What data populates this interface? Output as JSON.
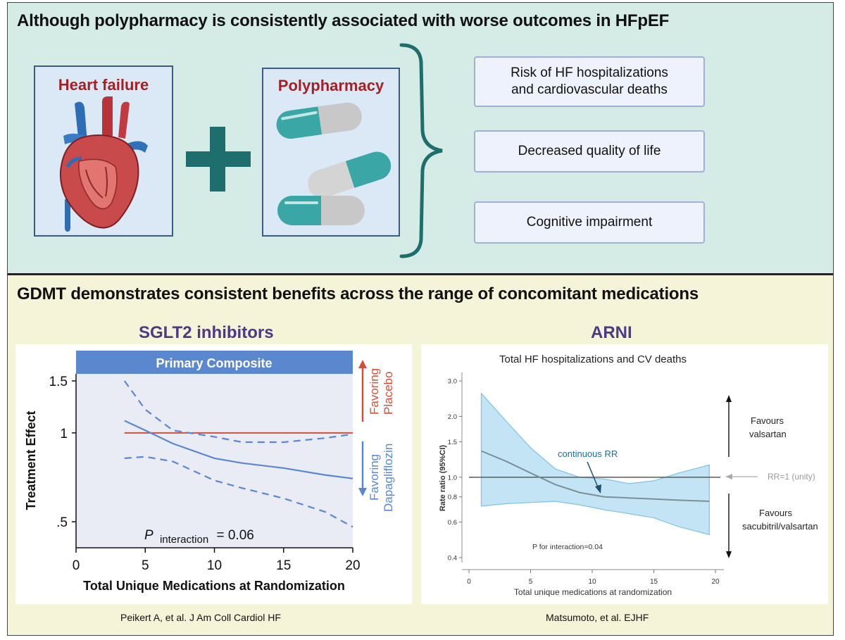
{
  "top_section": {
    "title": "Although polypharmacy is consistently associated with worse outcomes in HFpEF",
    "heart_card_title": "Heart failure",
    "pills_card_title": "Polypharmacy",
    "outcomes": [
      "Risk of HF hospitalizations\nand cardiovascular deaths",
      "Decreased quality of life",
      "Cognitive impairment"
    ],
    "colors": {
      "background": "#d5ece6",
      "plus": "#1f6e6e",
      "brace": "#1f6e6e",
      "card_title": "#a32126"
    }
  },
  "bottom_section": {
    "title": "GDMT demonstrates consistent benefits across the range of concomitant medications",
    "left_subtitle": "SGLT2 inhibitors",
    "right_subtitle": "ARNI",
    "left_citation": "Peikert A, et al. J Am Coll Cardiol HF",
    "right_citation": "Matsumoto, et al. EJHF"
  },
  "chart_data": [
    {
      "type": "line",
      "title": "Primary Composite",
      "xlabel": "Total Unique Medications at Randomization",
      "ylabel": "Treatment Effect",
      "xlim": [
        0,
        20
      ],
      "ylim": [
        0.5,
        1.5
      ],
      "x_ticks": [
        "0",
        "5",
        "10",
        "15",
        "20"
      ],
      "y_ticks": [
        "1.5",
        "1",
        ".5"
      ],
      "annotation": "P interaction = 0.06",
      "annotation_parts": {
        "p": "P",
        "sub": "interaction",
        "rest": "= 0.06"
      },
      "favor_upper": [
        "Favoring",
        "Placebo"
      ],
      "favor_lower": [
        "Favoring",
        "Dapagliflozin"
      ],
      "reference_y": 1.0,
      "series": [
        {
          "role": "estimate",
          "x": [
            3.5,
            5,
            7,
            10,
            12,
            15,
            18,
            20
          ],
          "y": [
            1.1,
            1.02,
            0.92,
            0.82,
            0.79,
            0.76,
            0.72,
            0.7
          ]
        },
        {
          "role": "upper",
          "x": [
            3.5,
            5,
            7,
            10,
            12,
            15,
            18,
            20
          ],
          "y": [
            1.5,
            1.2,
            1.02,
            0.97,
            0.93,
            0.93,
            0.96,
            0.99
          ]
        },
        {
          "role": "lower",
          "x": [
            3.5,
            5,
            7,
            10,
            12,
            15,
            18,
            20
          ],
          "y": [
            0.82,
            0.83,
            0.8,
            0.69,
            0.65,
            0.6,
            0.54,
            0.48
          ]
        }
      ],
      "colors": {
        "estimate": "#5b87cf",
        "reference": "#d0503a",
        "header": "#5b87cf",
        "favor_upper": "#d0503a",
        "favor_lower": "#5b87cf"
      }
    },
    {
      "type": "line",
      "title": "Total HF hospitalizations and CV deaths",
      "xlabel": "Total unique medications at randomization",
      "ylabel": "Rate ratio (95%CI)",
      "xlim": [
        0,
        20
      ],
      "ylim": [
        0.4,
        3.0
      ],
      "log_y": true,
      "x_ticks": [
        0,
        5,
        10,
        15,
        20
      ],
      "y_ticks": [
        {
          "value": 3.0,
          "label": "3.0"
        },
        {
          "value": 2.0,
          "label": "2.0"
        },
        {
          "value": 1.5,
          "label": "1.5"
        },
        {
          "value": 1.0,
          "label": "1.0"
        },
        {
          "value": 0.8,
          "label": "0.8"
        },
        {
          "value": 0.6,
          "label": "0.6"
        },
        {
          "value": 0.4,
          "label": "0.4"
        }
      ],
      "curve_label": "continuous RR",
      "unity_label": "RR=1 (unity)",
      "p_label": "P for interaction=0.04",
      "favours_upper": [
        "Favours",
        "valsartan"
      ],
      "favours_lower": [
        "Favours",
        "sacubitril/valsartan"
      ],
      "series": [
        {
          "role": "estimate",
          "x": [
            1,
            3,
            5,
            7,
            9,
            11,
            13,
            15,
            17,
            19.5
          ],
          "y": [
            1.35,
            1.2,
            1.05,
            0.92,
            0.84,
            0.8,
            0.79,
            0.78,
            0.77,
            0.76
          ]
        },
        {
          "role": "upper",
          "x": [
            1,
            3,
            5,
            7,
            9,
            11,
            13,
            15,
            17,
            19.5
          ],
          "y": [
            2.6,
            1.9,
            1.4,
            1.1,
            1.0,
            0.98,
            0.93,
            0.96,
            1.05,
            1.15
          ]
        },
        {
          "role": "lower",
          "x": [
            1,
            3,
            5,
            7,
            9,
            11,
            13,
            15,
            17,
            19.5
          ],
          "y": [
            0.72,
            0.74,
            0.75,
            0.76,
            0.73,
            0.69,
            0.66,
            0.63,
            0.57,
            0.52
          ]
        }
      ],
      "colors": {
        "band": "#b9dff3",
        "band_edge": "#7ec2e6",
        "estimate": "#7b8f9a",
        "unity": "#666666"
      }
    }
  ]
}
